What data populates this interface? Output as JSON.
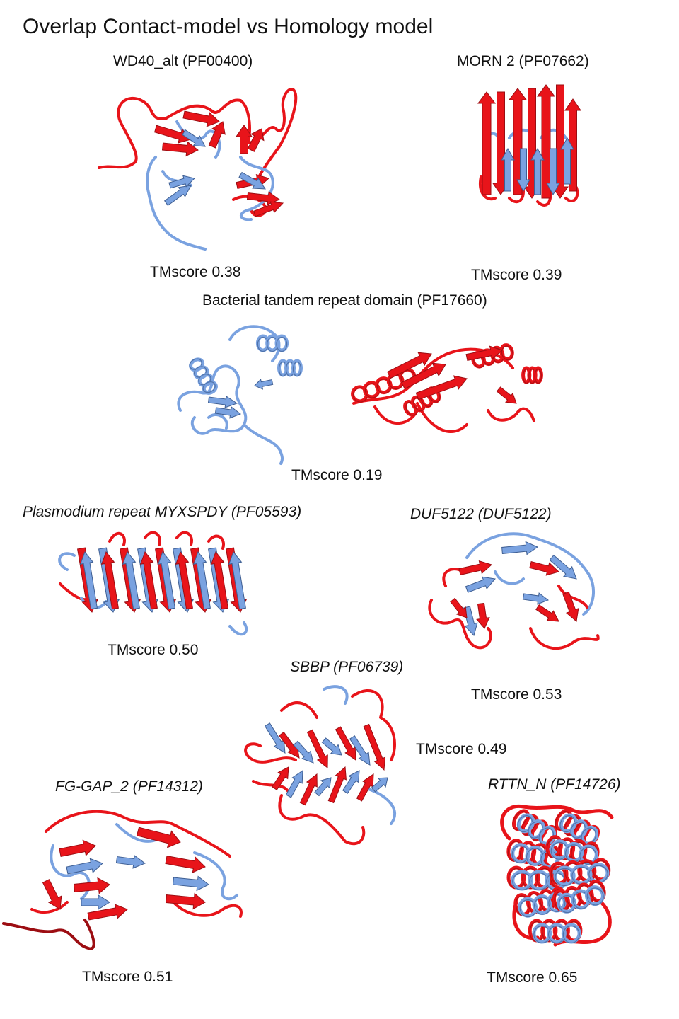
{
  "title": "Overlap Contact-model vs Homology model",
  "colors": {
    "contact_model": "#e8141a",
    "contact_dark": "#9c0d12",
    "homology_model": "#7aa2e0",
    "homology_dark": "#3f5f93"
  },
  "panels": [
    {
      "id": "wd40",
      "label": "WD40_alt (PF00400)",
      "italic": false,
      "score": "TMscore 0.38"
    },
    {
      "id": "morn",
      "label": "MORN 2 (PF07662)",
      "italic": false,
      "score": "TMscore 0.39"
    },
    {
      "id": "btr",
      "label": "Bacterial tandem repeat domain (PF17660)",
      "italic": false,
      "score": "TMscore 0.19"
    },
    {
      "id": "plasmodium",
      "label": "Plasmodium repeat MYXSPDY (PF05593)",
      "italic": true,
      "score": "TMscore 0.50"
    },
    {
      "id": "duf5122",
      "label": "DUF5122 (DUF5122)",
      "italic": true,
      "score": "TMscore 0.53"
    },
    {
      "id": "sbbp",
      "label": "SBBP (PF06739)",
      "italic": true,
      "score": "TMscore 0.49"
    },
    {
      "id": "fggap",
      "label": "FG-GAP_2 (PF14312)",
      "italic": true,
      "score": "TMscore 0.51"
    },
    {
      "id": "rttn",
      "label": "RTTN_N (PF14726)",
      "italic": true,
      "score": "TMscore 0.65"
    }
  ]
}
